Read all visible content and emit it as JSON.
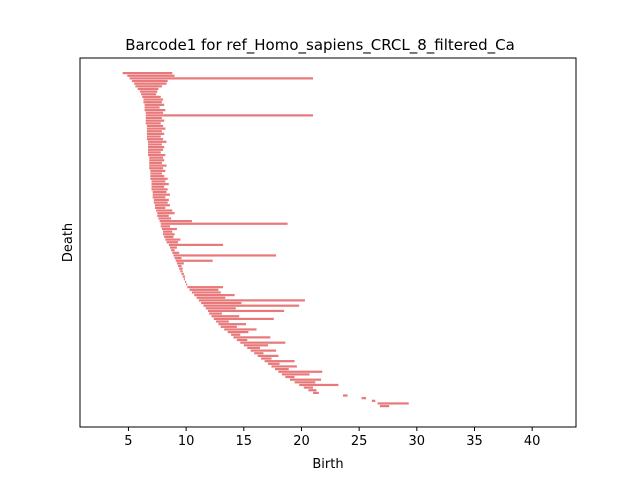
{
  "chart_data": {
    "type": "barcode",
    "title": "Barcode1 for ref_Homo_sapiens_CRCL_8_filtered_Ca",
    "xlabel": "Birth",
    "ylabel": "Death",
    "xlim": [
      0.8,
      43.8
    ],
    "xticks": [
      5,
      10,
      15,
      20,
      25,
      30,
      35,
      40
    ],
    "ytick_labels": [],
    "bar_color": "#e8787a",
    "grid": false,
    "legend": "none",
    "series": [
      {
        "name": "",
        "intervals": [
          [
            4.5,
            8.8
          ],
          [
            4.9,
            9.0
          ],
          [
            5.1,
            21.0
          ],
          [
            5.3,
            8.4
          ],
          [
            5.5,
            8.3
          ],
          [
            5.6,
            7.9
          ],
          [
            5.8,
            7.6
          ],
          [
            6.0,
            7.5
          ],
          [
            6.1,
            7.4
          ],
          [
            6.2,
            7.8
          ],
          [
            6.3,
            8.0
          ],
          [
            6.3,
            7.9
          ],
          [
            6.4,
            8.1
          ],
          [
            6.4,
            7.7
          ],
          [
            6.4,
            8.2
          ],
          [
            6.5,
            8.0
          ],
          [
            6.5,
            21.0
          ],
          [
            6.5,
            7.9
          ],
          [
            6.5,
            8.1
          ],
          [
            6.5,
            7.8
          ],
          [
            6.6,
            8.0
          ],
          [
            6.6,
            8.2
          ],
          [
            6.6,
            7.9
          ],
          [
            6.6,
            8.1
          ],
          [
            6.6,
            7.8
          ],
          [
            6.6,
            8.0
          ],
          [
            6.7,
            8.3
          ],
          [
            6.7,
            7.9
          ],
          [
            6.7,
            8.1
          ],
          [
            6.7,
            8.0
          ],
          [
            6.7,
            7.8
          ],
          [
            6.7,
            8.2
          ],
          [
            6.8,
            8.0
          ],
          [
            6.8,
            8.1
          ],
          [
            6.8,
            7.9
          ],
          [
            6.8,
            8.3
          ],
          [
            6.8,
            8.0
          ],
          [
            6.9,
            8.2
          ],
          [
            6.9,
            7.9
          ],
          [
            6.9,
            8.1
          ],
          [
            6.9,
            8.4
          ],
          [
            7.0,
            8.2
          ],
          [
            7.0,
            8.5
          ],
          [
            7.0,
            8.1
          ],
          [
            7.0,
            8.4
          ],
          [
            7.1,
            8.3
          ],
          [
            7.1,
            8.6
          ],
          [
            7.1,
            8.2
          ],
          [
            7.2,
            8.5
          ],
          [
            7.2,
            8.4
          ],
          [
            7.3,
            8.6
          ],
          [
            7.3,
            8.2
          ],
          [
            7.4,
            8.8
          ],
          [
            7.5,
            9.0
          ],
          [
            7.5,
            8.5
          ],
          [
            7.6,
            8.7
          ],
          [
            7.7,
            10.5
          ],
          [
            7.8,
            18.8
          ],
          [
            7.8,
            8.6
          ],
          [
            7.9,
            9.2
          ],
          [
            8.0,
            8.8
          ],
          [
            8.0,
            9.0
          ],
          [
            8.1,
            8.9
          ],
          [
            8.2,
            9.5
          ],
          [
            8.3,
            9.3
          ],
          [
            8.5,
            13.2
          ],
          [
            8.6,
            9.2
          ],
          [
            8.7,
            9.0
          ],
          [
            8.8,
            9.4
          ],
          [
            8.9,
            17.8
          ],
          [
            9.0,
            9.6
          ],
          [
            9.1,
            12.3
          ],
          [
            9.2,
            9.8
          ],
          [
            9.3,
            9.6
          ],
          [
            9.4,
            9.7
          ],
          [
            9.5,
            9.7
          ],
          [
            9.6,
            9.8
          ],
          [
            9.7,
            9.9
          ],
          [
            9.8,
            9.9
          ],
          [
            9.9,
            10.0
          ],
          [
            10.0,
            10.1
          ],
          [
            10.1,
            13.2
          ],
          [
            10.3,
            12.8
          ],
          [
            10.5,
            13.0
          ],
          [
            10.7,
            14.2
          ],
          [
            10.9,
            13.4
          ],
          [
            11.1,
            20.3
          ],
          [
            11.3,
            14.8
          ],
          [
            11.5,
            19.8
          ],
          [
            11.7,
            14.3
          ],
          [
            11.9,
            18.5
          ],
          [
            12.0,
            13.1
          ],
          [
            12.2,
            14.6
          ],
          [
            12.4,
            17.6
          ],
          [
            12.6,
            13.7
          ],
          [
            12.8,
            15.2
          ],
          [
            13.0,
            14.4
          ],
          [
            13.3,
            16.1
          ],
          [
            13.6,
            15.4
          ],
          [
            13.9,
            14.7
          ],
          [
            14.1,
            17.3
          ],
          [
            14.4,
            15.3
          ],
          [
            14.7,
            18.6
          ],
          [
            15.0,
            17.1
          ],
          [
            15.3,
            16.4
          ],
          [
            15.6,
            17.8
          ],
          [
            15.9,
            16.7
          ],
          [
            16.2,
            18.0
          ],
          [
            16.5,
            17.4
          ],
          [
            16.8,
            19.4
          ],
          [
            17.1,
            18.1
          ],
          [
            17.4,
            19.6
          ],
          [
            17.7,
            18.9
          ],
          [
            18.0,
            21.8
          ],
          [
            18.3,
            20.7
          ],
          [
            18.6,
            19.4
          ],
          [
            19.0,
            21.7
          ],
          [
            19.4,
            21.2
          ],
          [
            19.8,
            23.2
          ],
          [
            20.2,
            21.0
          ],
          [
            20.6,
            21.3
          ],
          [
            21.0,
            21.5
          ],
          [
            23.6,
            24.0
          ],
          [
            25.2,
            25.6
          ],
          [
            26.1,
            26.4
          ],
          [
            26.6,
            29.3
          ],
          [
            26.8,
            27.6
          ]
        ]
      }
    ]
  }
}
